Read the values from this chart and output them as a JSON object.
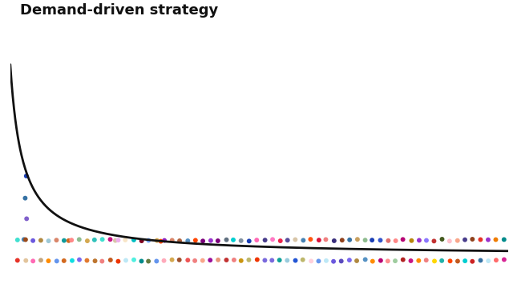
{
  "title": "Demand-driven strategy",
  "title_fontsize": 13,
  "title_fontweight": "bold",
  "bg_color": "#ffffff",
  "curve_color": "#111111",
  "curve_lw": 2.0,
  "dot_colors": [
    "#1a3eb5",
    "#2255d4",
    "#3355cc",
    "#4466dd",
    "#e63328",
    "#cc2222",
    "#dd4433",
    "#87ceeb",
    "#aaddee",
    "#99ccdd",
    "#c8a060",
    "#b08840",
    "#d4a850",
    "#8b3a0a",
    "#7a2a00",
    "#9b4a1a",
    "#ff6b6b",
    "#ee5555",
    "#ff8888",
    "#d2691e",
    "#c2591e",
    "#e2792e",
    "#9370db",
    "#8060cb",
    "#a080eb",
    "#ffc0cb",
    "#ffaabb",
    "#ffd0db",
    "#800020",
    "#700010",
    "#900030",
    "#4169e1",
    "#3159d1",
    "#5179f1",
    "#ff4500",
    "#ee3400",
    "#ff5510",
    "#40e0d0",
    "#30d0c0",
    "#50f0e0",
    "#daa520",
    "#ca9510",
    "#eab530",
    "#6a5acd",
    "#5a4abd",
    "#7a6add",
    "#cd853f",
    "#bd752f",
    "#dd954f",
    "#b22222",
    "#a21212",
    "#c23232",
    "#add8e6",
    "#9dc8d6",
    "#bde8f6",
    "#e8d5b7",
    "#d8c5a7",
    "#f8e5c7",
    "#9932cc",
    "#8922bc",
    "#a942dc",
    "#ff8c00",
    "#ef7c00",
    "#ff9c10",
    "#dc143c",
    "#cc042c",
    "#ec244c",
    "#4682b4",
    "#3672a4",
    "#5692c4",
    "#d2b48c",
    "#c2a47c",
    "#e2c49c",
    "#8b008b",
    "#7b007b",
    "#9b109b",
    "#f08080",
    "#e07070",
    "#ff9090",
    "#008b8b",
    "#007b7b",
    "#109b9b",
    "#bdb76b",
    "#ada75b",
    "#cdc77b",
    "#e9967a",
    "#d9866a",
    "#f9a68a",
    "#483d8b",
    "#382d7b",
    "#584d9b",
    "#c71585",
    "#b70575",
    "#d72595",
    "#20b2aa",
    "#10a29a",
    "#30c2ba",
    "#b8860b",
    "#a8760b",
    "#c8961b",
    "#6495ed",
    "#5485dd",
    "#74a5fd",
    "#8fbc8f",
    "#7fac7f",
    "#9fcc9f",
    "#a0522d",
    "#90421d",
    "#b0623d",
    "#dda0dd",
    "#cd90cd",
    "#edb0ed",
    "#708090",
    "#607080",
    "#8090a0",
    "#556b2f",
    "#455b1f",
    "#657b3f",
    "#ff69b4",
    "#ee59a4",
    "#ff79c4",
    "#00ced1",
    "#00bec1",
    "#10dee1",
    "#ffd700",
    "#eec700",
    "#ffe710",
    "#7b68ee",
    "#6b58de",
    "#8b78fe"
  ],
  "seed": 7
}
